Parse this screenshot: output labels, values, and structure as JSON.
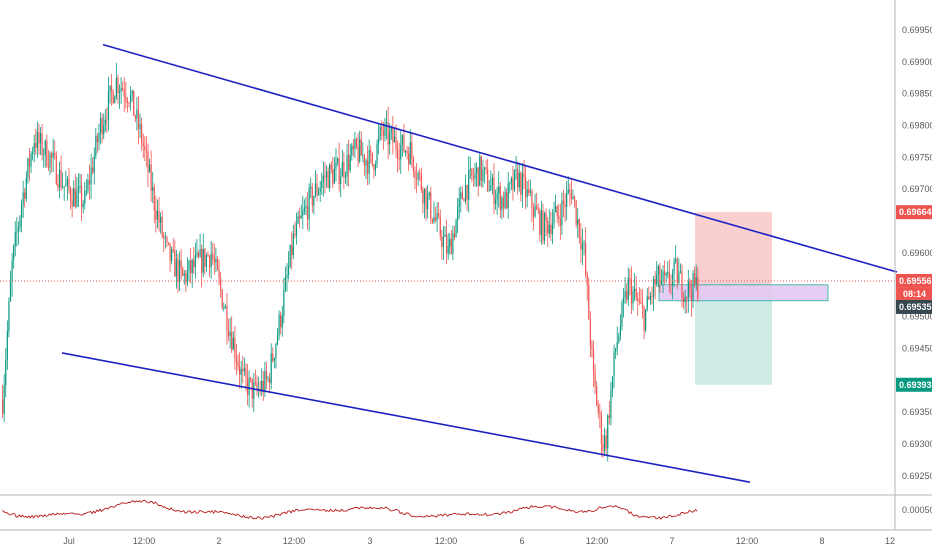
{
  "chart_data": {
    "type": "candlestick",
    "title": "",
    "xlabel": "",
    "ylabel": "",
    "ylim": [
      0.69205,
      0.7
    ],
    "y_ticks": [
      "0.69950",
      "0.69900",
      "0.69850",
      "0.69800",
      "0.69750",
      "0.69700",
      "0.69600",
      "0.69500",
      "0.69450",
      "0.69350",
      "0.69300",
      "0.69250"
    ],
    "x_ticks": [
      "Jul",
      "12:00",
      "2",
      "12:00",
      "3",
      "12:00",
      "6",
      "12:00",
      "7",
      "12:00",
      "8",
      "12"
    ],
    "grid": false,
    "price_markers": [
      {
        "value": 0.69664,
        "label": "0.69664",
        "color": "#ef5350",
        "text_color": "#ffffff"
      },
      {
        "value": 0.69556,
        "label": "0.69556",
        "color": "#ef5350",
        "text_color": "#ffffff"
      },
      {
        "value": 0.69535,
        "label": "0.69535",
        "color": "#37474f",
        "text_color": "#ffffff"
      },
      {
        "value": 0.69393,
        "label": "0.69393",
        "color": "#089981",
        "text_color": "#ffffff"
      }
    ],
    "countdown": "08:14",
    "current_price": 0.69556,
    "series": [
      {
        "type": "candles",
        "anchors": [
          [
            0,
            0.6937
          ],
          [
            6,
            0.6958
          ],
          [
            12,
            0.6968
          ],
          [
            20,
            0.6978
          ],
          [
            30,
            0.6975
          ],
          [
            40,
            0.697
          ],
          [
            52,
            0.6968
          ],
          [
            62,
            0.698
          ],
          [
            72,
            0.6987
          ],
          [
            80,
            0.6985
          ],
          [
            88,
            0.6978
          ],
          [
            96,
            0.6968
          ],
          [
            104,
            0.696
          ],
          [
            114,
            0.6956
          ],
          [
            122,
            0.6958
          ],
          [
            132,
            0.696
          ],
          [
            142,
            0.695
          ],
          [
            152,
            0.694
          ],
          [
            160,
            0.6938
          ],
          [
            168,
            0.694
          ],
          [
            176,
            0.695
          ],
          [
            184,
            0.6962
          ],
          [
            194,
            0.6968
          ],
          [
            204,
            0.6972
          ],
          [
            214,
            0.6973
          ],
          [
            224,
            0.6976
          ],
          [
            234,
            0.6974
          ],
          [
            240,
            0.6979
          ],
          [
            250,
            0.6977
          ],
          [
            258,
            0.6976
          ],
          [
            266,
            0.697
          ],
          [
            274,
            0.6965
          ],
          [
            282,
            0.696
          ],
          [
            292,
            0.697
          ],
          [
            302,
            0.6973
          ],
          [
            310,
            0.697
          ],
          [
            318,
            0.6968
          ],
          [
            326,
            0.6972
          ],
          [
            334,
            0.6968
          ],
          [
            342,
            0.6964
          ],
          [
            352,
            0.6966
          ],
          [
            360,
            0.697
          ],
          [
            368,
            0.696
          ],
          [
            374,
            0.694
          ],
          [
            380,
            0.693
          ],
          [
            382,
            0.6931
          ],
          [
            388,
            0.6945
          ],
          [
            396,
            0.6955
          ],
          [
            406,
            0.695
          ],
          [
            414,
            0.6956
          ],
          [
            420,
            0.6955
          ],
          [
            426,
            0.6957
          ],
          [
            432,
            0.6954
          ],
          [
            440,
            0.6955
          ]
        ]
      },
      {
        "type": "oscillator",
        "name": ""
      }
    ],
    "trendlines": [
      {
        "name": "upper-channel",
        "from": [
          0.6991,
          0.69927
        ],
        "to": [
          1.0,
          0.6957
        ]
      },
      {
        "name": "lower-channel",
        "from": [
          0.6991,
          0.69443
        ],
        "to": [
          1.0,
          0.6924
        ]
      }
    ],
    "position": {
      "entry": 0.69535,
      "stop": 0.69664,
      "target": 0.69393,
      "box": {
        "top": 0.6955,
        "bottom": 0.69525
      }
    },
    "colors": {
      "up": "#089981",
      "down": "#ef5350",
      "trendline": "#1c22c4",
      "oscillator": "#b71c1c",
      "stop_zone": "#f8c7c7",
      "target_zone": "#c5e8e2",
      "entry_box": "#e3c9f2",
      "entry_box_border": "#35b7a5"
    }
  }
}
